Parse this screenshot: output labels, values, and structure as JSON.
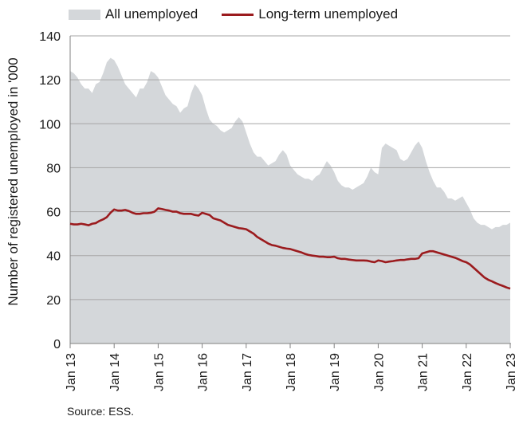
{
  "legend": {
    "area_label": "All unemployed",
    "line_label": "Long-term unemployed"
  },
  "source": "Source: ESS.",
  "chart_data": {
    "type": "area",
    "ylabel": "Number of registered unemployed in '000",
    "xlabel": "",
    "ylim": [
      0,
      140
    ],
    "yticks": [
      0,
      20,
      40,
      60,
      80,
      100,
      120,
      140
    ],
    "xlim": [
      2013,
      2023
    ],
    "xticks": [
      2013,
      2014,
      2015,
      2016,
      2017,
      2018,
      2019,
      2020,
      2021,
      2022,
      2023
    ],
    "xtick_labels": [
      "Jan 13",
      "Jan 14",
      "Jan 15",
      "Jan 16",
      "Jan 17",
      "Jan 18",
      "Jan 19",
      "Jan 20",
      "Jan 21",
      "Jan 22",
      "Jan 23"
    ],
    "grid": true,
    "legend_position": "top",
    "colors": {
      "area": "#d4d7da",
      "line": "#9b1b1e",
      "grid": "#a6a6a6"
    },
    "series": [
      {
        "name": "All unemployed",
        "type": "area",
        "x": [
          2013.0,
          2013.083,
          2013.167,
          2013.25,
          2013.333,
          2013.417,
          2013.5,
          2013.583,
          2013.667,
          2013.75,
          2013.833,
          2013.917,
          2014.0,
          2014.083,
          2014.167,
          2014.25,
          2014.333,
          2014.417,
          2014.5,
          2014.583,
          2014.667,
          2014.75,
          2014.833,
          2014.917,
          2015.0,
          2015.083,
          2015.167,
          2015.25,
          2015.333,
          2015.417,
          2015.5,
          2015.583,
          2015.667,
          2015.75,
          2015.833,
          2015.917,
          2016.0,
          2016.083,
          2016.167,
          2016.25,
          2016.333,
          2016.417,
          2016.5,
          2016.583,
          2016.667,
          2016.75,
          2016.833,
          2016.917,
          2017.0,
          2017.083,
          2017.167,
          2017.25,
          2017.333,
          2017.417,
          2017.5,
          2017.583,
          2017.667,
          2017.75,
          2017.833,
          2017.917,
          2018.0,
          2018.083,
          2018.167,
          2018.25,
          2018.333,
          2018.417,
          2018.5,
          2018.583,
          2018.667,
          2018.75,
          2018.833,
          2018.917,
          2019.0,
          2019.083,
          2019.167,
          2019.25,
          2019.333,
          2019.417,
          2019.5,
          2019.583,
          2019.667,
          2019.75,
          2019.833,
          2019.917,
          2020.0,
          2020.083,
          2020.167,
          2020.25,
          2020.333,
          2020.417,
          2020.5,
          2020.583,
          2020.667,
          2020.75,
          2020.833,
          2020.917,
          2021.0,
          2021.083,
          2021.167,
          2021.25,
          2021.333,
          2021.417,
          2021.5,
          2021.583,
          2021.667,
          2021.75,
          2021.833,
          2021.917,
          2022.0,
          2022.083,
          2022.167,
          2022.25,
          2022.333,
          2022.417,
          2022.5,
          2022.583,
          2022.667,
          2022.75,
          2022.833,
          2022.917,
          2023.0
        ],
        "values": [
          124,
          123,
          121,
          118,
          116,
          116,
          114,
          118,
          119,
          123,
          128,
          130,
          129,
          126,
          122,
          118,
          116,
          114,
          112,
          116,
          116,
          119,
          124,
          123,
          121,
          117,
          113,
          111,
          109,
          108,
          105,
          107,
          108,
          114,
          118,
          116,
          113,
          107,
          102,
          100,
          99,
          97,
          96,
          97,
          98,
          101,
          103,
          101,
          96,
          91,
          87,
          85,
          85,
          83,
          81,
          82,
          83,
          86,
          88,
          86,
          81,
          79,
          77,
          76,
          75,
          75,
          74,
          76,
          77,
          80,
          83,
          81,
          78,
          74,
          72,
          71,
          71,
          70,
          71,
          72,
          73,
          76,
          80,
          78,
          77,
          89,
          91,
          90,
          89,
          88,
          84,
          83,
          84,
          87,
          90,
          92,
          89,
          83,
          78,
          74,
          71,
          71,
          69,
          66,
          66,
          65,
          66,
          67,
          64,
          61,
          57,
          55,
          54,
          54,
          53,
          52,
          53,
          53,
          54,
          54,
          55
        ]
      },
      {
        "name": "Long-term unemployed",
        "type": "line",
        "x": [
          2013.0,
          2013.083,
          2013.167,
          2013.25,
          2013.333,
          2013.417,
          2013.5,
          2013.583,
          2013.667,
          2013.75,
          2013.833,
          2013.917,
          2014.0,
          2014.083,
          2014.167,
          2014.25,
          2014.333,
          2014.417,
          2014.5,
          2014.583,
          2014.667,
          2014.75,
          2014.833,
          2014.917,
          2015.0,
          2015.083,
          2015.167,
          2015.25,
          2015.333,
          2015.417,
          2015.5,
          2015.583,
          2015.667,
          2015.75,
          2015.833,
          2015.917,
          2016.0,
          2016.083,
          2016.167,
          2016.25,
          2016.333,
          2016.417,
          2016.5,
          2016.583,
          2016.667,
          2016.75,
          2016.833,
          2016.917,
          2017.0,
          2017.083,
          2017.167,
          2017.25,
          2017.333,
          2017.417,
          2017.5,
          2017.583,
          2017.667,
          2017.75,
          2017.833,
          2017.917,
          2018.0,
          2018.083,
          2018.167,
          2018.25,
          2018.333,
          2018.417,
          2018.5,
          2018.583,
          2018.667,
          2018.75,
          2018.833,
          2018.917,
          2019.0,
          2019.083,
          2019.167,
          2019.25,
          2019.333,
          2019.417,
          2019.5,
          2019.583,
          2019.667,
          2019.75,
          2019.833,
          2019.917,
          2020.0,
          2020.083,
          2020.167,
          2020.25,
          2020.333,
          2020.417,
          2020.5,
          2020.583,
          2020.667,
          2020.75,
          2020.833,
          2020.917,
          2021.0,
          2021.083,
          2021.167,
          2021.25,
          2021.333,
          2021.417,
          2021.5,
          2021.583,
          2021.667,
          2021.75,
          2021.833,
          2021.917,
          2022.0,
          2022.083,
          2022.167,
          2022.25,
          2022.333,
          2022.417,
          2022.5,
          2022.583,
          2022.667,
          2022.75,
          2022.833,
          2022.917,
          2023.0
        ],
        "values": [
          54.5,
          54.2,
          54.2,
          54.5,
          54.2,
          53.8,
          54.5,
          54.8,
          55.8,
          56.5,
          57.5,
          59.5,
          61.0,
          60.5,
          60.5,
          60.8,
          60.3,
          59.5,
          59.0,
          59.0,
          59.3,
          59.3,
          59.5,
          60.0,
          61.5,
          61.2,
          60.8,
          60.5,
          60.0,
          60.0,
          59.3,
          59.0,
          59.0,
          59.0,
          58.5,
          58.2,
          59.5,
          59.0,
          58.5,
          57.0,
          56.5,
          56.0,
          55.0,
          54.0,
          53.5,
          53.0,
          52.5,
          52.3,
          52.0,
          51.0,
          50.0,
          48.5,
          47.5,
          46.5,
          45.5,
          44.8,
          44.5,
          44.0,
          43.5,
          43.2,
          43.0,
          42.5,
          42.0,
          41.5,
          40.8,
          40.3,
          40.0,
          39.8,
          39.5,
          39.5,
          39.3,
          39.3,
          39.5,
          38.8,
          38.5,
          38.5,
          38.2,
          38.0,
          37.8,
          37.8,
          37.8,
          37.7,
          37.3,
          37.0,
          37.8,
          37.5,
          37.0,
          37.3,
          37.5,
          37.8,
          38.0,
          38.0,
          38.3,
          38.5,
          38.5,
          38.8,
          41.0,
          41.5,
          42.0,
          42.0,
          41.5,
          41.0,
          40.5,
          40.0,
          39.5,
          39.0,
          38.3,
          37.5,
          37.0,
          36.0,
          34.5,
          33.0,
          31.5,
          30.0,
          29.0,
          28.3,
          27.5,
          26.8,
          26.2,
          25.5,
          25.0
        ]
      }
    ]
  }
}
